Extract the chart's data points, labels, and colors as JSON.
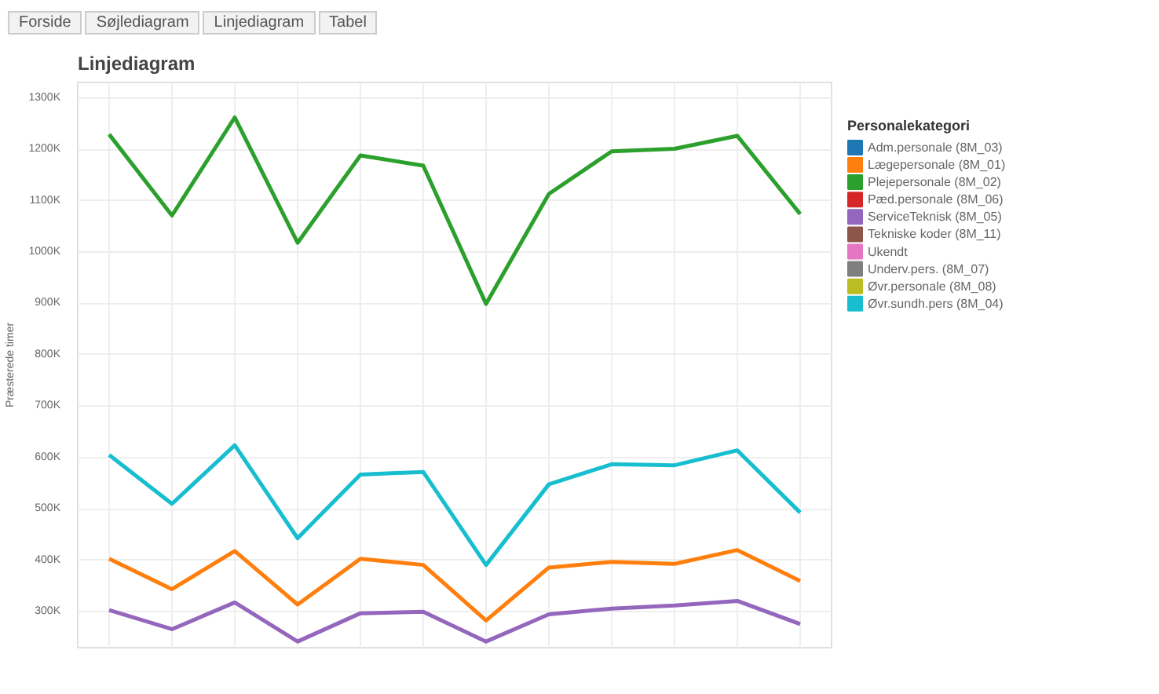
{
  "chart_data": {
    "type": "line",
    "title": "Linjediagram",
    "ylabel": "Præsterede timer",
    "legend_title": "Personalekategori",
    "annotations": [
      "Forside",
      "Søjlediagram",
      "Linjediagram",
      "Tabel"
    ],
    "categories": [
      null,
      null,
      null,
      null,
      null,
      null,
      null,
      null,
      null,
      null,
      null,
      null
    ],
    "ylim": [
      230000,
      1330000
    ],
    "yticks": [
      {
        "value": 300000,
        "label": "300K"
      },
      {
        "value": 400000,
        "label": "400K"
      },
      {
        "value": 500000,
        "label": "500K"
      },
      {
        "value": 600000,
        "label": "600K"
      },
      {
        "value": 700000,
        "label": "700K"
      },
      {
        "value": 800000,
        "label": "800K"
      },
      {
        "value": 900000,
        "label": "900K"
      },
      {
        "value": 1000000,
        "label": "1000K"
      },
      {
        "value": 1100000,
        "label": "1100K"
      },
      {
        "value": 1200000,
        "label": "1200K"
      },
      {
        "value": 1300000,
        "label": "1300K"
      }
    ],
    "grid": true,
    "legend": "right",
    "line_style": "solid",
    "series": [
      {
        "name": "Adm.personale (8M_03)",
        "color": "#1f77b4",
        "values": [
          null,
          null,
          null,
          null,
          null,
          null,
          null,
          null,
          null,
          null,
          null,
          null
        ]
      },
      {
        "name": "Lægepersonale (8M_01)",
        "color": "#ff7f0e",
        "values": [
          403000,
          344000,
          418000,
          314000,
          403000,
          391000,
          283000,
          386000,
          397000,
          393000,
          420000,
          360000
        ]
      },
      {
        "name": "Plejepersonale (8M_02)",
        "color": "#2ca02c",
        "values": [
          1229000,
          1071000,
          1262000,
          1018000,
          1188000,
          1168000,
          899000,
          1113000,
          1196000,
          1201000,
          1226000,
          1074000
        ]
      },
      {
        "name": "Pæd.personale (8M_06)",
        "color": "#d62728",
        "values": [
          null,
          null,
          null,
          null,
          null,
          null,
          null,
          null,
          null,
          null,
          null,
          null
        ]
      },
      {
        "name": "ServiceTeknisk (8M_05)",
        "color": "#9467bd",
        "values": [
          303000,
          266000,
          318000,
          242000,
          297000,
          300000,
          242000,
          295000,
          306000,
          312000,
          321000,
          276000
        ]
      },
      {
        "name": "Tekniske koder (8M_11)",
        "color": "#8c564b",
        "values": [
          null,
          null,
          null,
          null,
          null,
          null,
          null,
          null,
          null,
          null,
          null,
          null
        ]
      },
      {
        "name": "Ukendt",
        "color": "#e377c2",
        "values": [
          null,
          null,
          null,
          null,
          null,
          null,
          null,
          null,
          null,
          null,
          null,
          null
        ]
      },
      {
        "name": "Underv.pers. (8M_07)",
        "color": "#7f7f7f",
        "values": [
          null,
          null,
          null,
          null,
          null,
          null,
          null,
          null,
          null,
          null,
          null,
          null
        ]
      },
      {
        "name": "Øvr.personale (8M_08)",
        "color": "#bcbd22",
        "values": [
          null,
          null,
          null,
          null,
          null,
          null,
          null,
          null,
          null,
          null,
          null,
          null
        ]
      },
      {
        "name": "Øvr.sundh.pers (8M_04)",
        "color": "#17becf",
        "values": [
          605000,
          510000,
          624000,
          443000,
          567000,
          572000,
          391000,
          548000,
          587000,
          585000,
          614000,
          493000
        ]
      }
    ]
  }
}
